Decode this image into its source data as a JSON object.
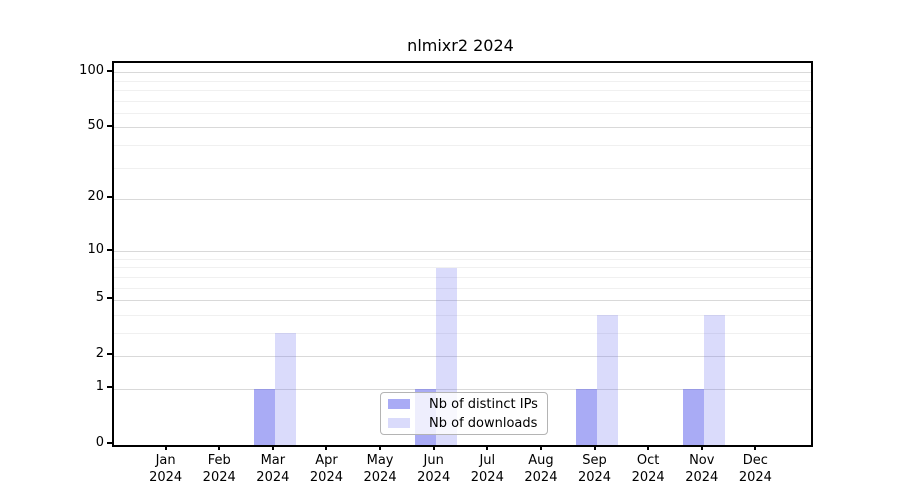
{
  "chart_data": {
    "type": "bar",
    "title": "nlmixr2 2024",
    "x_categories": [
      "Jan",
      "Feb",
      "Mar",
      "Apr",
      "May",
      "Jun",
      "Jul",
      "Aug",
      "Sep",
      "Oct",
      "Nov",
      "Dec"
    ],
    "x_year_label": "2024",
    "series": [
      {
        "name": "Nb of distinct IPs",
        "base_color": "#6669ee",
        "alpha": 0.56,
        "solid_color": "#a9abf5",
        "values": [
          0,
          0,
          1,
          0,
          0,
          1,
          0,
          0,
          1,
          0,
          1,
          0
        ]
      },
      {
        "name": "Nb of downloads",
        "base_color": "#6669ee",
        "alpha": 0.24,
        "solid_color": "#dadcfb",
        "values": [
          0,
          0,
          3,
          0,
          0,
          8,
          0,
          0,
          4,
          0,
          4,
          0
        ]
      }
    ],
    "yscale": "log1p",
    "y_ticks": [
      0,
      1,
      2,
      5,
      10,
      20,
      50,
      100
    ],
    "y_minor_ticks": [
      3,
      4,
      6,
      7,
      8,
      9,
      30,
      40,
      60,
      70,
      80,
      90
    ],
    "ylim": [
      0,
      113
    ],
    "grid": "on",
    "legend": {
      "position": "inside-bottom-center",
      "entries": [
        "Nb of distinct IPs",
        "Nb of downloads"
      ]
    },
    "colors": {
      "background": "#ffffff",
      "spine": "#000000",
      "major_grid": "#d9d9d9",
      "minor_grid": "#f0f0f0",
      "text": "#000000",
      "legend_border": "#b4b4b4"
    }
  }
}
